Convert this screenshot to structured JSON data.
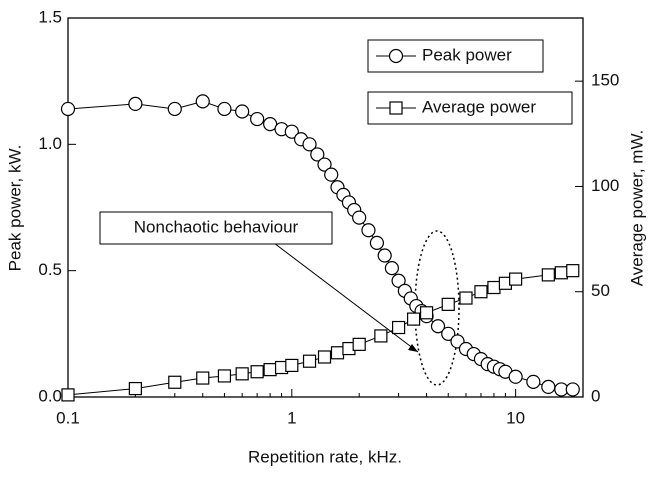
{
  "chart_data": {
    "type": "line",
    "x_label": "Repetition rate, kHz.",
    "y_label": "Peak power, kW.",
    "y2_label": "Average power, mW.",
    "annotation": "Nonchaotic behaviour",
    "xlim": [
      0.1,
      20
    ],
    "xticks": [
      0.1,
      1,
      10
    ],
    "xscale": "log",
    "ylim": [
      0,
      1.5
    ],
    "yticks": [
      {
        "value": 0,
        "label": "0.0"
      },
      0.5,
      {
        "value": 1,
        "label": "1.0"
      },
      1.5
    ],
    "y2lim": [
      0,
      180
    ],
    "y2ticks": [
      0,
      50,
      100,
      150
    ],
    "series": [
      {
        "name": "Peak power",
        "marker": "circle",
        "color": "#000000",
        "x": [
          0.1,
          0.2,
          0.3,
          0.4,
          0.5,
          0.6,
          0.7,
          0.8,
          0.9,
          1.0,
          1.1,
          1.2,
          1.3,
          1.4,
          1.5,
          1.6,
          1.7,
          1.8,
          1.9,
          2.0,
          2.2,
          2.4,
          2.6,
          2.8,
          3.0,
          3.2,
          3.4,
          3.6,
          3.8,
          4.0,
          4.5,
          5.0,
          5.5,
          6.0,
          6.5,
          7.0,
          7.5,
          8.0,
          8.5,
          9.0,
          10,
          12,
          14,
          16,
          18
        ],
        "values": [
          1.14,
          1.16,
          1.14,
          1.17,
          1.14,
          1.13,
          1.1,
          1.08,
          1.06,
          1.05,
          1.02,
          1.0,
          0.96,
          0.92,
          0.88,
          0.83,
          0.8,
          0.77,
          0.74,
          0.71,
          0.66,
          0.61,
          0.56,
          0.51,
          0.46,
          0.42,
          0.39,
          0.36,
          0.34,
          0.32,
          0.28,
          0.25,
          0.22,
          0.19,
          0.17,
          0.15,
          0.13,
          0.12,
          0.11,
          0.1,
          0.08,
          0.06,
          0.04,
          0.03,
          0.03
        ]
      },
      {
        "name": "Average power",
        "marker": "square",
        "color": "#000000",
        "axis": "y2",
        "x": [
          0.1,
          0.2,
          0.3,
          0.4,
          0.5,
          0.6,
          0.7,
          0.8,
          0.9,
          1.0,
          1.2,
          1.4,
          1.6,
          1.8,
          2.0,
          2.5,
          3.0,
          3.5,
          4.0,
          5.0,
          6.0,
          7.0,
          8.0,
          9.0,
          10,
          14,
          16,
          18
        ],
        "values": [
          1,
          4,
          7,
          9,
          10,
          11,
          12,
          13,
          14,
          15,
          17,
          19,
          21,
          23,
          25,
          29,
          33,
          37,
          40,
          44,
          47,
          50,
          52,
          54,
          56,
          58,
          59,
          60
        ]
      }
    ]
  }
}
